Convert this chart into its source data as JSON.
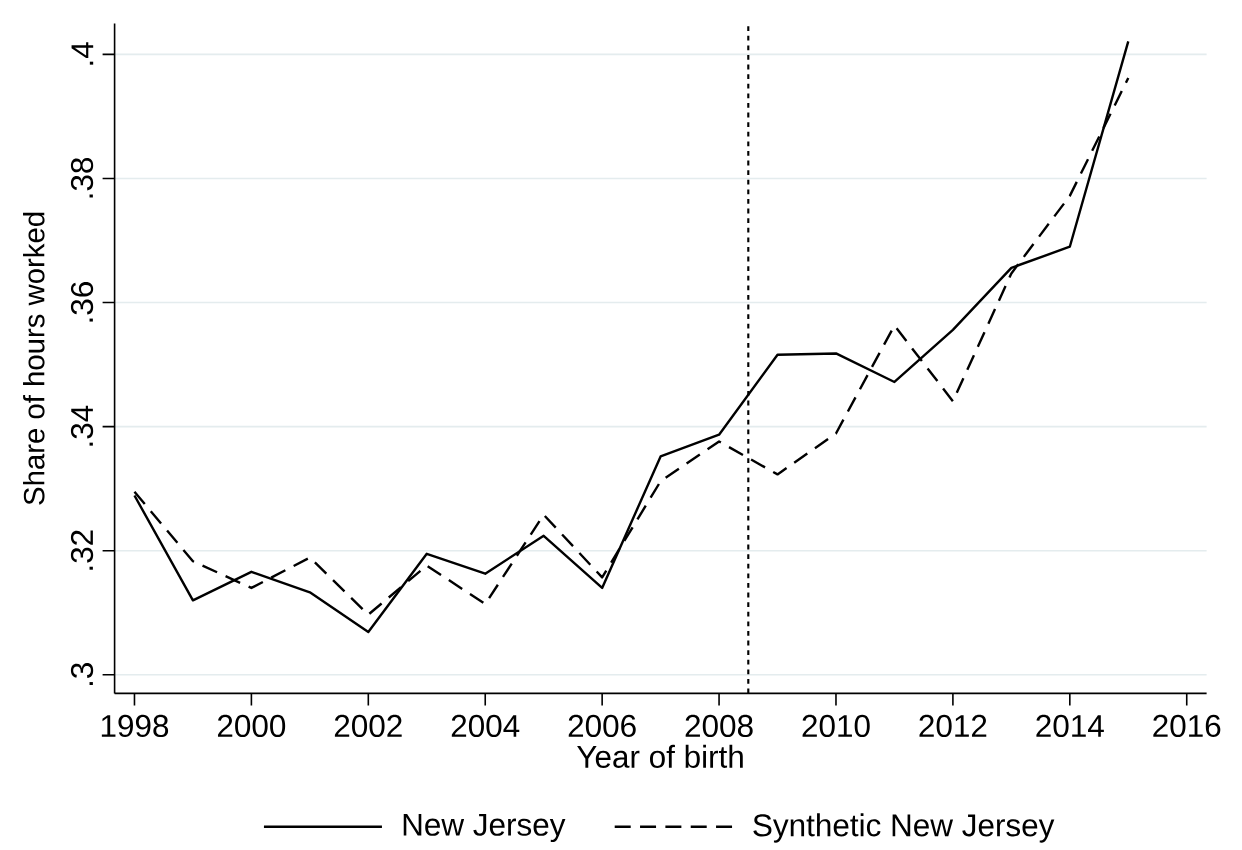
{
  "chart_data": {
    "type": "line",
    "xlabel": "Year of birth",
    "ylabel": "Share of hours worked",
    "x": [
      1998,
      1999,
      2000,
      2001,
      2002,
      2003,
      2004,
      2005,
      2006,
      2007,
      2008,
      2009,
      2010,
      2011,
      2012,
      2013,
      2014,
      2015
    ],
    "series": [
      {
        "name": "New Jersey",
        "color": "#000000",
        "line_style": "solid",
        "values": [
          0.3289,
          0.312,
          0.3166,
          0.3133,
          0.3069,
          0.3195,
          0.3163,
          0.3224,
          0.314,
          0.3352,
          0.3387,
          0.3516,
          0.3518,
          0.3472,
          0.3556,
          0.3656,
          0.369,
          0.4021
        ]
      },
      {
        "name": "Synthetic New Jersey",
        "color": "#000000",
        "line_style": "dashed",
        "values": [
          0.3295,
          0.3183,
          0.314,
          0.3189,
          0.3097,
          0.3176,
          0.3114,
          0.3258,
          0.3157,
          0.3312,
          0.3376,
          0.3323,
          0.3389,
          0.3563,
          0.3441,
          0.3647,
          0.3772,
          0.3962
        ]
      }
    ],
    "xlim": [
      1997.66,
      2016.34
    ],
    "ylim": [
      0.297,
      0.405
    ],
    "xticks": [
      1998,
      2000,
      2002,
      2004,
      2006,
      2008,
      2010,
      2012,
      2014,
      2016
    ],
    "yticks": [
      {
        "value": 0.3,
        "label": ".3"
      },
      {
        "value": 0.32,
        "label": ".32"
      },
      {
        "value": 0.34,
        "label": ".34"
      },
      {
        "value": 0.36,
        "label": ".36"
      },
      {
        "value": 0.38,
        "label": ".38"
      },
      {
        "value": 0.4,
        "label": ".4"
      }
    ],
    "ref_lines": [
      {
        "axis": "x",
        "value": 2008.5,
        "color": "#000000",
        "line_style": "dotted"
      }
    ],
    "grid": "y",
    "legend": "bottom"
  }
}
